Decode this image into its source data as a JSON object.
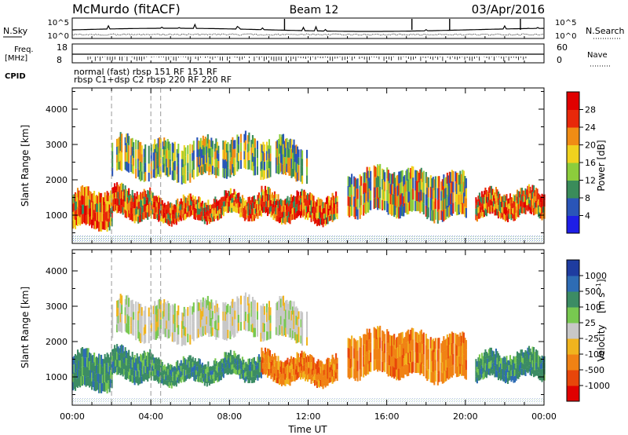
{
  "chart_data": {
    "type": "heatmap",
    "header": {
      "station": "McMurdo (fitACF)",
      "beam": "Beam 12",
      "date": "03/Apr/2016"
    },
    "noise_panel": {
      "left_label": "N.Sky",
      "right_label": "N.Search",
      "left_ticks": [
        "10^5",
        "10^0"
      ],
      "right_ticks": [
        "10^5",
        "10^0"
      ]
    },
    "freq_panel": {
      "left_label_1": "Freq.",
      "left_label_2": "[MHz]",
      "left_ticks": [
        "18",
        "8"
      ],
      "right_label": "Nave",
      "right_ticks": [
        "60",
        "0"
      ]
    },
    "cpid": {
      "label": "CPID",
      "modes": [
        {
          "line1": "normal (fast)",
          "line2": "rbsp C1+dsp C2"
        },
        {
          "line1": "rbsp 151",
          "line2": "rbsp 220"
        },
        {
          "line1": "RF 151",
          "line2": "RF 220"
        }
      ],
      "full_line1": "normal (fast) rbsp 151 RF 151 RF",
      "full_line2": "rbsp C1+dsp C2 rbsp 220 RF 220 RF"
    },
    "x_axis": {
      "label": "Time UT",
      "range_hours": [
        0,
        24
      ],
      "ticks": [
        "00:00",
        "04:00",
        "08:00",
        "12:00",
        "16:00",
        "20:00",
        "00:00"
      ]
    },
    "y_axis": {
      "label": "Slant Range [km]",
      "range_km": [
        200,
        4600
      ],
      "ticks": [
        1000,
        2000,
        3000,
        4000
      ]
    },
    "dashed_lines_hours": [
      2.0,
      4.0,
      4.5
    ],
    "power_panel": {
      "colorbar_label": "Power [dB]",
      "colorbar_ticks": [
        "4",
        "8",
        "12",
        "16",
        "20",
        "24",
        "28"
      ],
      "colors": [
        "#1e1ee6",
        "#2a55b8",
        "#3a8c5a",
        "#8ccd3c",
        "#f0d21e",
        "#f08c14",
        "#e8280a",
        "#e00000"
      ]
    },
    "velocity_panel": {
      "colorbar_label_main": "Velocity",
      "colorbar_label_unit": "[m s",
      "colorbar_label_exp": "-1",
      "colorbar_label_close": "]",
      "colorbar_ticks": [
        "1000",
        "500",
        "100",
        "25",
        "-25",
        "-100",
        "-500",
        "-1000"
      ],
      "colors": [
        "#1e3ca0",
        "#2e6cb4",
        "#3c8c64",
        "#78c850",
        "#c8c8c8",
        "#f0b41e",
        "#f08214",
        "#e8460a",
        "#e00000"
      ]
    },
    "echo_regions": [
      {
        "t0": 0.0,
        "t1": 2.0,
        "r0": 600,
        "r1": 1600,
        "power": "high",
        "velocity": "green"
      },
      {
        "t0": 2.0,
        "t1": 4.0,
        "r0": 900,
        "r1": 1700,
        "power": "high",
        "velocity": "green"
      },
      {
        "t0": 4.0,
        "t1": 9.6,
        "r0": 900,
        "r1": 1500,
        "power": "high",
        "velocity": "green"
      },
      {
        "t0": 9.6,
        "t1": 13.5,
        "r0": 900,
        "r1": 1600,
        "power": "high",
        "velocity": "orange"
      },
      {
        "t0": 14.0,
        "t1": 20.0,
        "r0": 1000,
        "r1": 2200,
        "power": "mixed",
        "velocity": "orange"
      },
      {
        "t0": 20.5,
        "t1": 24.0,
        "r0": 900,
        "r1": 1600,
        "power": "high",
        "velocity": "green"
      },
      {
        "t0": 2.0,
        "t1": 12.0,
        "r0": 2100,
        "r1": 3100,
        "power": "low",
        "velocity": "gray"
      }
    ]
  }
}
